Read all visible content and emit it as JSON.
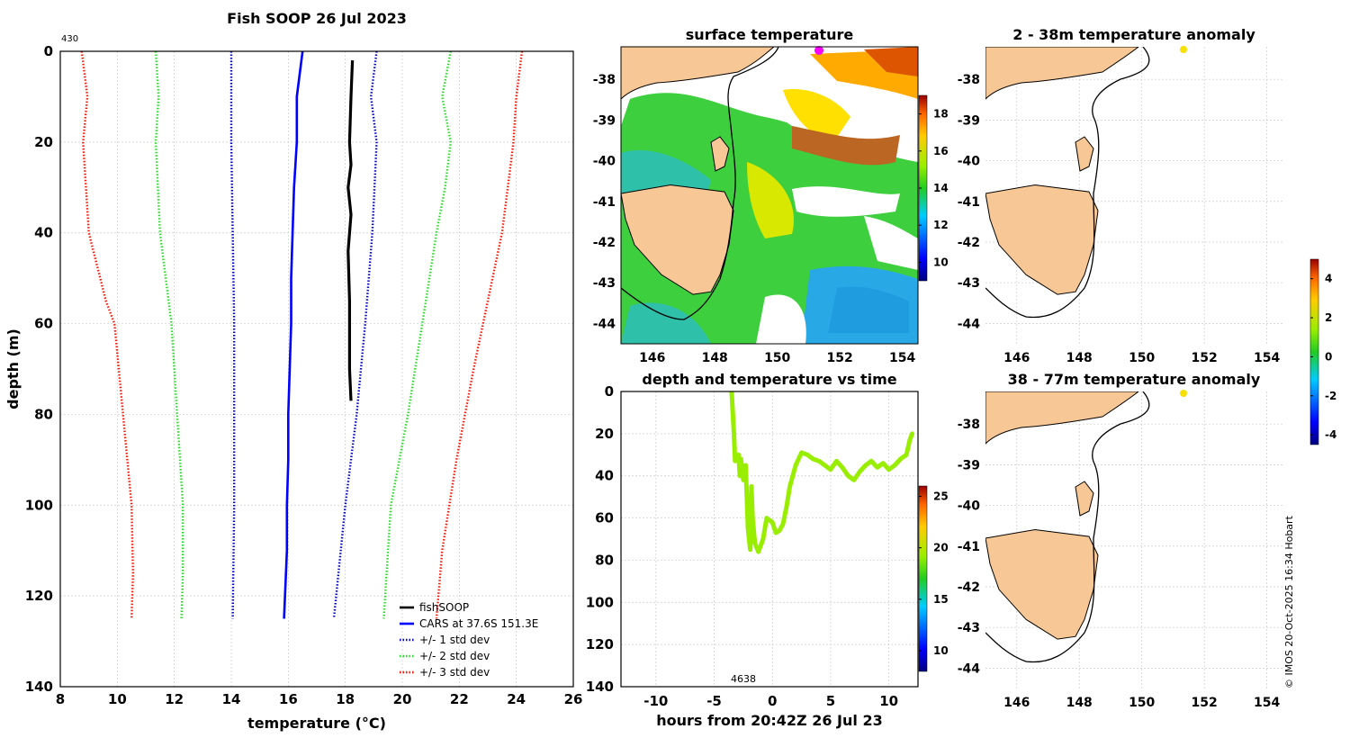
{
  "chart_data": [
    {
      "type": "line",
      "id": "profile",
      "title": "Fish SOOP 26 Jul 2023",
      "corner_label": "430",
      "xlabel": "temperature (°C)",
      "ylabel": "depth (m)",
      "xlim": [
        8,
        26
      ],
      "ylim": [
        0,
        140
      ],
      "y_reversed": true,
      "grid": true,
      "legend_position": "bottom-right",
      "xticks": [
        "8",
        "10",
        "12",
        "14",
        "16",
        "18",
        "20",
        "22",
        "24",
        "26"
      ],
      "yticks": [
        "0",
        "20",
        "40",
        "60",
        "80",
        "100",
        "120",
        "140"
      ],
      "series": [
        {
          "name": "fishSOOP",
          "color": "#000000",
          "dash": "solid",
          "points": [
            [
              18.25,
              2
            ],
            [
              18.2,
              10
            ],
            [
              18.15,
              20
            ],
            [
              18.2,
              25
            ],
            [
              18.1,
              30
            ],
            [
              18.2,
              36
            ],
            [
              18.1,
              44
            ],
            [
              18.15,
              55
            ],
            [
              18.15,
              70
            ],
            [
              18.2,
              77
            ]
          ]
        },
        {
          "name": "CARS at 37.6S 151.3E",
          "color": "#0000ff",
          "dash": "solid",
          "points": [
            [
              16.5,
              0
            ],
            [
              16.4,
              5
            ],
            [
              16.3,
              10
            ],
            [
              16.3,
              20
            ],
            [
              16.2,
              30
            ],
            [
              16.15,
              40
            ],
            [
              16.1,
              50
            ],
            [
              16.1,
              60
            ],
            [
              16.05,
              70
            ],
            [
              16.0,
              80
            ],
            [
              16.0,
              90
            ],
            [
              15.95,
              100
            ],
            [
              15.95,
              110
            ],
            [
              15.85,
              125
            ]
          ]
        },
        {
          "name": "-1 std dev (CARS)",
          "color": "#0000cc",
          "dash": "dot",
          "in_legend": false,
          "points": [
            [
              14.0,
              0
            ],
            [
              14.0,
              20
            ],
            [
              14.05,
              40
            ],
            [
              14.1,
              60
            ],
            [
              14.1,
              80
            ],
            [
              14.1,
              100
            ],
            [
              14.05,
              125
            ]
          ]
        },
        {
          "name": "+/- 1 std dev",
          "color": "#0000cc",
          "dash": "dot",
          "points": [
            [
              19.1,
              0
            ],
            [
              18.9,
              10
            ],
            [
              19.1,
              20
            ],
            [
              18.95,
              40
            ],
            [
              18.7,
              60
            ],
            [
              18.4,
              80
            ],
            [
              18.0,
              100
            ],
            [
              17.6,
              125
            ]
          ]
        },
        {
          "name": "-2 std dev (CARS)",
          "color": "#22dd22",
          "dash": "dot",
          "in_legend": false,
          "points": [
            [
              11.35,
              0
            ],
            [
              11.45,
              10
            ],
            [
              11.35,
              20
            ],
            [
              11.5,
              40
            ],
            [
              11.9,
              60
            ],
            [
              12.1,
              80
            ],
            [
              12.3,
              100
            ],
            [
              12.3,
              115
            ],
            [
              12.25,
              125
            ]
          ]
        },
        {
          "name": "+/- 2 std dev",
          "color": "#22dd22",
          "dash": "dot",
          "points": [
            [
              21.7,
              0
            ],
            [
              21.4,
              10
            ],
            [
              21.7,
              20
            ],
            [
              21.5,
              30
            ],
            [
              21.2,
              40
            ],
            [
              20.7,
              60
            ],
            [
              20.2,
              80
            ],
            [
              19.6,
              100
            ],
            [
              19.35,
              125
            ]
          ]
        },
        {
          "name": "-3 std dev (CARS)",
          "color": "#ff1100",
          "dash": "dot",
          "in_legend": false,
          "points": [
            [
              8.75,
              0
            ],
            [
              8.95,
              10
            ],
            [
              8.8,
              20
            ],
            [
              9.0,
              40
            ],
            [
              9.6,
              55
            ],
            [
              9.9,
              60
            ],
            [
              10.2,
              80
            ],
            [
              10.5,
              100
            ],
            [
              10.55,
              115
            ],
            [
              10.5,
              125
            ]
          ]
        },
        {
          "name": "+/- 3 std dev",
          "color": "#ff1100",
          "dash": "dot",
          "points": [
            [
              24.2,
              0
            ],
            [
              24.0,
              10
            ],
            [
              23.9,
              20
            ],
            [
              23.7,
              30
            ],
            [
              23.5,
              40
            ],
            [
              23.0,
              55
            ],
            [
              22.5,
              70
            ],
            [
              21.9,
              90
            ],
            [
              21.4,
              110
            ],
            [
              21.2,
              125
            ]
          ]
        }
      ]
    },
    {
      "type": "heatmap",
      "id": "surface-temperature",
      "title": "surface temperature",
      "xlim": [
        145,
        154.5
      ],
      "ylim": [
        -44.5,
        -37.2
      ],
      "xticks": [
        "146",
        "148",
        "150",
        "152",
        "154"
      ],
      "yticks": [
        "-38",
        "-39",
        "-40",
        "-41",
        "-42",
        "-43",
        "-44"
      ],
      "colorbar": {
        "range": [
          9,
          19
        ],
        "ticks": [
          "10",
          "12",
          "14",
          "16",
          "18"
        ]
      },
      "marker": {
        "lon": 151.3,
        "lat": -37.6,
        "color": "#ff00ff"
      }
    },
    {
      "type": "line",
      "id": "depth-vs-time",
      "title": "depth and temperature vs time",
      "xlabel": "hours from 20:42Z 26 Jul 23",
      "xlim": [
        -13,
        12.5
      ],
      "ylim": [
        0,
        140
      ],
      "y_reversed": true,
      "xticks": [
        "-10",
        "-5",
        "0",
        "5",
        "10"
      ],
      "yticks": [
        "0",
        "20",
        "40",
        "60",
        "80",
        "100",
        "120",
        "140"
      ],
      "annotation": "4638",
      "colorbar": {
        "range": [
          8,
          26
        ],
        "ticks": [
          "10",
          "15",
          "20",
          "25"
        ]
      },
      "series": [
        {
          "name": "depth",
          "color": "#99ee00",
          "points": [
            [
              -3.5,
              0
            ],
            [
              -3.3,
              20
            ],
            [
              -3.2,
              33
            ],
            [
              -2.9,
              30
            ],
            [
              -2.8,
              40
            ],
            [
              -2.7,
              32
            ],
            [
              -2.5,
              42
            ],
            [
              -2.3,
              35
            ],
            [
              -2.1,
              65
            ],
            [
              -1.9,
              75
            ],
            [
              -1.8,
              45
            ],
            [
              -1.7,
              60
            ],
            [
              -1.5,
              72
            ],
            [
              -1.2,
              76
            ],
            [
              -0.8,
              70
            ],
            [
              -0.5,
              60
            ],
            [
              0.0,
              62
            ],
            [
              0.3,
              67
            ],
            [
              0.6,
              66
            ],
            [
              0.9,
              63
            ],
            [
              1.2,
              55
            ],
            [
              1.5,
              45
            ],
            [
              2.0,
              35
            ],
            [
              2.5,
              29
            ],
            [
              3.0,
              30
            ],
            [
              3.5,
              32
            ],
            [
              4.0,
              33
            ],
            [
              4.5,
              35
            ],
            [
              5.0,
              37
            ],
            [
              5.5,
              33
            ],
            [
              6.0,
              36
            ],
            [
              6.5,
              40
            ],
            [
              7.0,
              42
            ],
            [
              7.5,
              38
            ],
            [
              8.0,
              35
            ],
            [
              8.5,
              33
            ],
            [
              9.0,
              36
            ],
            [
              9.5,
              34
            ],
            [
              10.0,
              37
            ],
            [
              10.5,
              35
            ],
            [
              11.0,
              32
            ],
            [
              11.5,
              30
            ],
            [
              11.8,
              23
            ],
            [
              12.0,
              20
            ]
          ]
        }
      ]
    },
    {
      "type": "heatmap",
      "id": "anomaly-2-38m",
      "title": "2 - 38m temperature anomaly",
      "xlim": [
        145,
        154.5
      ],
      "ylim": [
        -44.5,
        -37.2
      ],
      "xticks": [
        "146",
        "148",
        "150",
        "152",
        "154"
      ],
      "yticks": [
        "-38",
        "-39",
        "-40",
        "-41",
        "-42",
        "-43",
        "-44"
      ],
      "marker": {
        "lon": 151.3,
        "lat": -37.6,
        "color": "#f5e000"
      }
    },
    {
      "type": "heatmap",
      "id": "anomaly-38-77m",
      "title": "38 - 77m temperature anomaly",
      "xlim": [
        145,
        154.5
      ],
      "ylim": [
        -44.5,
        -37.2
      ],
      "xticks": [
        "146",
        "148",
        "150",
        "152",
        "154"
      ],
      "yticks": [
        "-38",
        "-39",
        "-40",
        "-41",
        "-42",
        "-43",
        "-44"
      ],
      "marker": {
        "lon": 151.3,
        "lat": -37.6,
        "color": "#f5e000"
      }
    },
    {
      "type": "colorbar",
      "id": "anomaly-colorbar",
      "range": [
        -4.5,
        5
      ],
      "ticks": [
        "4",
        "2",
        "0",
        "-2",
        "-4"
      ]
    }
  ],
  "credit": "© IMOS 20-Oct-2025 16:34 Hobart",
  "colors": {
    "land": "#f7c796",
    "coast": "#000000",
    "grid": "#c8c8c8",
    "sst_warm": "#ff9900",
    "sst_mid": "#33cc33",
    "sst_cold": "#22aaee"
  }
}
